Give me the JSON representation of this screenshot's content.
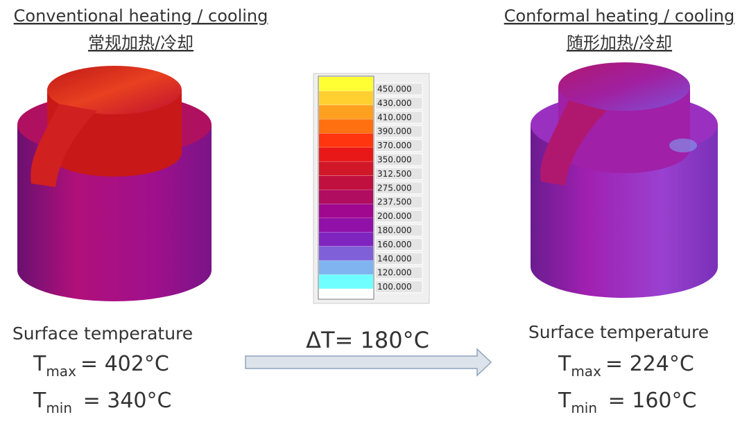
{
  "left": {
    "title": "Conventional heating / cooling",
    "subtitle": "常规加热/冷却",
    "caption": "Surface temperature",
    "tmax": {
      "symbol": "T",
      "sub": "max",
      "value": "= 402°C"
    },
    "tmin": {
      "symbol": "T",
      "sub": "min",
      "value": " = 340°C"
    }
  },
  "right": {
    "title": "Conformal heating / cooling",
    "subtitle": "随形加热/冷却",
    "caption": "Surface temperature",
    "tmax": {
      "symbol": "T",
      "sub": "max",
      "value": "= 224°C"
    },
    "tmin": {
      "symbol": "T",
      "sub": "min",
      "value": " = 160°C"
    }
  },
  "legend": {
    "labels": [
      "450.000",
      "430.000",
      "410.000",
      "390.000",
      "370.000",
      "350.000",
      "312.500",
      "275.000",
      "237.500",
      "200.000",
      "180.000",
      "160.000",
      "140.000",
      "120.000",
      "100.000"
    ],
    "colors": [
      "#ffff33",
      "#ffd030",
      "#ffa020",
      "#ff7010",
      "#ff3510",
      "#e81818",
      "#d01828",
      "#c01040",
      "#b00c60",
      "#a00890",
      "#9010a8",
      "#8024c0",
      "#8060d8",
      "#80b4f0",
      "#70ffff"
    ]
  },
  "delta": "ΔT= 180°C"
}
